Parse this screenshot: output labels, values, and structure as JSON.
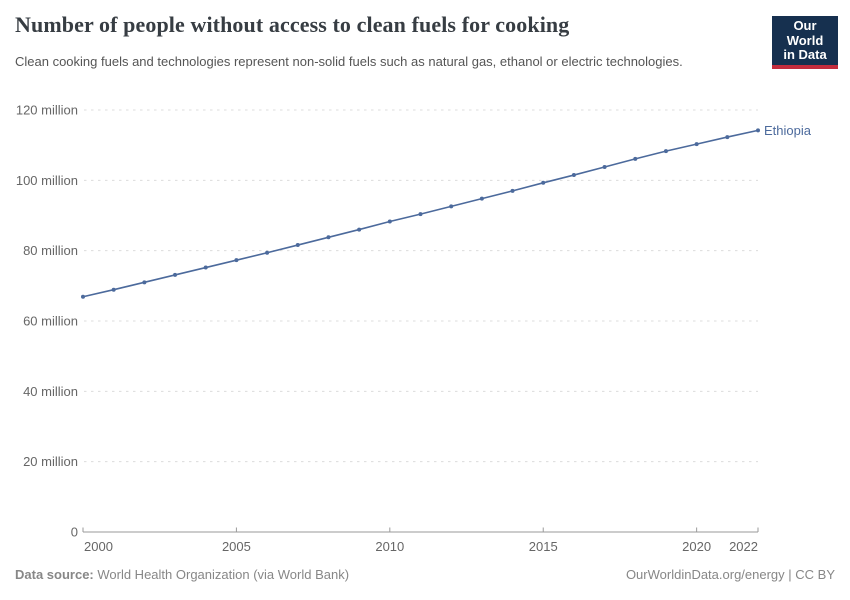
{
  "header": {
    "title": "Number of people without access to clean fuels for cooking",
    "subtitle": "Clean cooking fuels and technologies represent non-solid fuels such as natural gas, ethanol or electric technologies.",
    "logo": {
      "line1": "Our World",
      "line2": "in Data"
    }
  },
  "chart_data": {
    "type": "line",
    "title": "Number of people without access to clean fuels for cooking",
    "xlabel": "",
    "ylabel": "",
    "unit": "million people",
    "xlim": [
      2000,
      2022
    ],
    "ylim": [
      0,
      120
    ],
    "grid": "horizontal-dashed",
    "legend_position": "end-of-line-label",
    "x_ticks": [
      2000,
      2005,
      2010,
      2015,
      2020,
      2022
    ],
    "y_ticks": [
      {
        "value": 0,
        "label": "0"
      },
      {
        "value": 20,
        "label": "20 million"
      },
      {
        "value": 40,
        "label": "40 million"
      },
      {
        "value": 60,
        "label": "60 million"
      },
      {
        "value": 80,
        "label": "80 million"
      },
      {
        "value": 100,
        "label": "100 million"
      },
      {
        "value": 120,
        "label": "120 million"
      }
    ],
    "series": [
      {
        "name": "Ethiopia",
        "color": "#4c6a9c",
        "x": [
          2000,
          2001,
          2002,
          2003,
          2004,
          2005,
          2006,
          2007,
          2008,
          2009,
          2010,
          2011,
          2012,
          2013,
          2014,
          2015,
          2016,
          2017,
          2018,
          2019,
          2020,
          2021,
          2022
        ],
        "values": [
          66.9,
          68.9,
          71.0,
          73.1,
          75.2,
          77.3,
          79.4,
          81.6,
          83.8,
          86.0,
          88.3,
          90.4,
          92.6,
          94.8,
          97.0,
          99.3,
          101.5,
          103.8,
          106.1,
          108.3,
          110.3,
          112.3,
          114.2
        ]
      }
    ]
  },
  "footer": {
    "datasource_label": "Data source:",
    "datasource_value": " World Health Organization (via World Bank)",
    "attribution": "OurWorldinData.org/energy | CC BY"
  },
  "colors": {
    "line": "#4c6a9c",
    "grid": "#dcdcdc",
    "axis": "#9a9a9a",
    "tick_label": "#666666",
    "logo_bg": "#16304f",
    "logo_accent": "#c32c3d",
    "footer_text": "#878787"
  }
}
